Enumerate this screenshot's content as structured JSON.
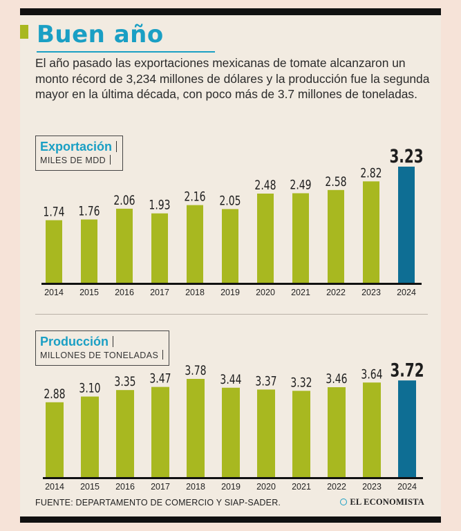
{
  "title": "Buen año",
  "description": "El año pasado las exportaciones mexicanas de tomate alcanzaron un monto récord de 3,234 millones de dólares y la producción fue la segunda mayor en la última década, con poco más de 3.7 millones de toneladas.",
  "colors": {
    "bar": "#a8b820",
    "highlight": "#0e6e94",
    "accent": "#1a9fc4"
  },
  "chart_data": [
    {
      "type": "bar",
      "title": "Exportación",
      "ylabel": "MILES DE MDD",
      "categories": [
        "2014",
        "2015",
        "2016",
        "2017",
        "2018",
        "2019",
        "2020",
        "2021",
        "2022",
        "2023",
        "2024"
      ],
      "values": [
        1.74,
        1.76,
        2.06,
        1.93,
        2.16,
        2.05,
        2.48,
        2.49,
        2.58,
        2.82,
        3.23
      ],
      "highlight_index": 10
    },
    {
      "type": "bar",
      "title": "Producción",
      "ylabel": "MILLONES DE TONELADAS",
      "categories": [
        "2014",
        "2015",
        "2016",
        "2017",
        "2018",
        "2019",
        "2020",
        "2021",
        "2022",
        "2023",
        "2024"
      ],
      "values": [
        2.88,
        3.1,
        3.35,
        3.47,
        3.78,
        3.44,
        3.37,
        3.32,
        3.46,
        3.64,
        3.72
      ],
      "highlight_index": 10
    }
  ],
  "footer": {
    "source": "FUENTE: DEPARTAMENTO DE COMERCIO Y SIAP-SADER.",
    "brand": "EL ECONOMISTA"
  }
}
